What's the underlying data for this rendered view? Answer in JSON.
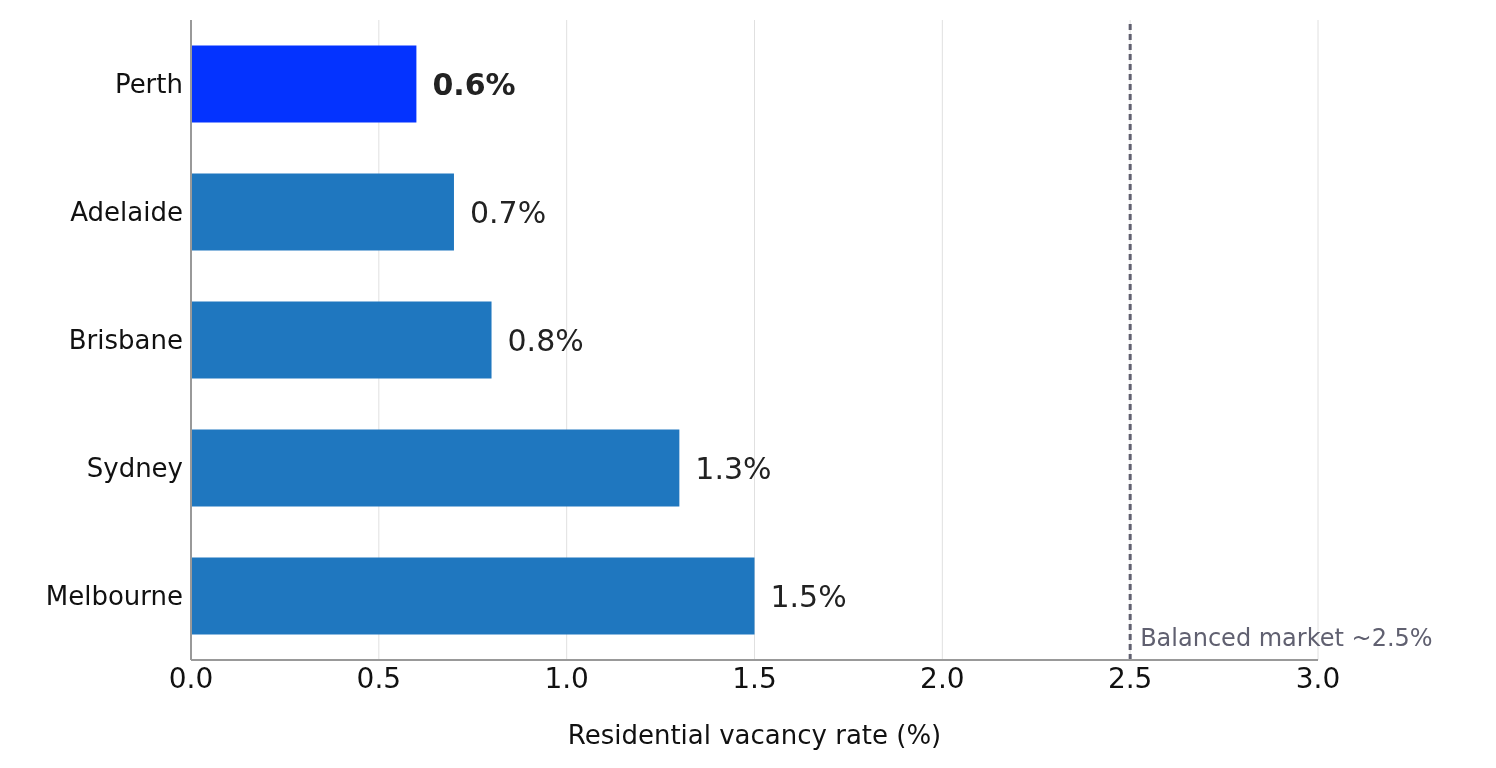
{
  "chart_data": {
    "type": "bar",
    "orientation": "horizontal",
    "xlabel": "Residential vacancy rate (%)",
    "categories": [
      "Perth",
      "Adelaide",
      "Brisbane",
      "Sydney",
      "Melbourne"
    ],
    "values": [
      0.6,
      0.7,
      0.8,
      1.3,
      1.5
    ],
    "colors": [
      "#0433ff",
      "#1f77bf",
      "#1f77bf",
      "#1f77bf",
      "#1f77bf"
    ],
    "value_labels": [
      "0.6%",
      "0.7%",
      "0.8%",
      "1.3%",
      "1.5%"
    ],
    "xlim": [
      0,
      3
    ],
    "xticks": [
      {
        "value": 0,
        "label": "0.0"
      },
      {
        "value": 0.5,
        "label": "0.5"
      },
      {
        "value": 1,
        "label": "1.0"
      },
      {
        "value": 1.5,
        "label": "1.5"
      },
      {
        "value": 2,
        "label": "2.0"
      },
      {
        "value": 2.5,
        "label": "2.5"
      },
      {
        "value": 3,
        "label": "3.0"
      }
    ],
    "grid": "x",
    "ref_lines": [
      {
        "axis": "x",
        "value": 2.5,
        "label": "Balanced market ~2.5%",
        "color": "#606070",
        "line_style": "dashed"
      }
    ]
  }
}
